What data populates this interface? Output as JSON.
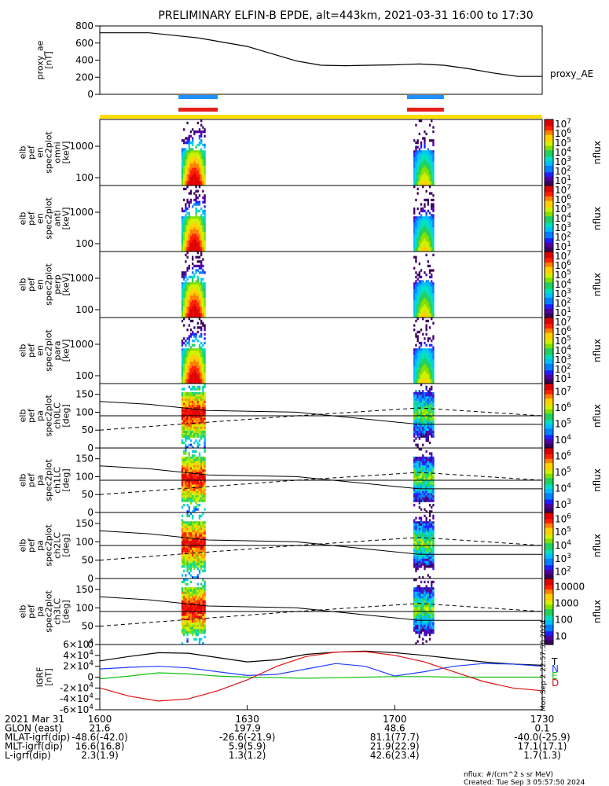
{
  "title": "PRELIMINARY ELFIN-B EPDE, alt=443km, 2021-03-31 16:00 to 17:30",
  "colors": {
    "bar_blue": "#1e90ff",
    "bar_red": "#e8201a",
    "bar_yellow": "#ffdd00",
    "grf_T": "#000000",
    "grf_N": "#1f3fff",
    "grf_E": "#10c010",
    "grf_D": "#e01010"
  },
  "footer": {
    "rows": [
      {
        "label": "2021 Mar 31",
        "values": [
          "1600",
          "1630",
          "1700",
          "1730"
        ]
      },
      {
        "label": "GLON (east)",
        "values": [
          "21.6",
          "197.9",
          "48.6",
          "0.1"
        ]
      },
      {
        "label": "MLAT-igrf(dip)",
        "values": [
          "-48.6(-42.0)",
          "-26.6(-21.9)",
          "81.1(77.7)",
          "-40.0(-25.9)"
        ]
      },
      {
        "label": "MLT-igrf(dip)",
        "values": [
          "16.6(16.8)",
          "5.9(5.9)",
          "21.9(22.9)",
          "17.1(17.1)"
        ]
      },
      {
        "label": "L-igrf(dip)",
        "values": [
          "2.3(1.9)",
          "1.3(1.2)",
          "42.6(23.4)",
          "1.7(1.3)"
        ]
      }
    ],
    "units_note": "nflux: #/(cm^2 s sr MeV)",
    "created_note": "Created: Tue Sep  3 05:57:50 2024",
    "side_stamp": "Mon Sep  2 22:57:50 2024"
  },
  "chart_data": [
    {
      "type": "line",
      "ylabel": "proxy_ae [nT]",
      "legend": "proxy_AE",
      "ylim": [
        0,
        800
      ],
      "yticks": [
        "0",
        "200",
        "400",
        "600",
        "800"
      ],
      "x_minutes": [
        0,
        10,
        20,
        30,
        40,
        45,
        50,
        55,
        60,
        65,
        70,
        75,
        80,
        85,
        90
      ],
      "values": [
        720,
        720,
        660,
        560,
        390,
        340,
        335,
        340,
        345,
        355,
        340,
        300,
        250,
        210,
        210
      ]
    },
    {
      "type": "heatmap",
      "ylabel": "elb pef en spec2plot omni [keV]",
      "yticks": [
        "100",
        "1000"
      ],
      "colorbar": {
        "label": "nflux",
        "ticks": [
          "10^1",
          "10^2",
          "10^3",
          "10^4",
          "10^5",
          "10^6",
          "10^7"
        ]
      }
    },
    {
      "type": "heatmap",
      "ylabel": "elb pef en spec2plot anti [keV]",
      "yticks": [
        "100",
        "1000"
      ],
      "colorbar": {
        "label": "nflux",
        "ticks": [
          "10^1",
          "10^2",
          "10^3",
          "10^4",
          "10^5",
          "10^6",
          "10^7"
        ]
      }
    },
    {
      "type": "heatmap",
      "ylabel": "elb pef en spec2plot perp [keV]",
      "yticks": [
        "100",
        "1000"
      ],
      "colorbar": {
        "label": "nflux",
        "ticks": [
          "10^1",
          "10^2",
          "10^3",
          "10^4",
          "10^5",
          "10^6",
          "10^7"
        ]
      }
    },
    {
      "type": "heatmap",
      "ylabel": "elb pef en spec2plot para [keV]",
      "yticks": [
        "100",
        "1000"
      ],
      "colorbar": {
        "label": "nflux",
        "ticks": [
          "10^1",
          "10^2",
          "10^3",
          "10^4",
          "10^5",
          "10^6",
          "10^7"
        ]
      }
    },
    {
      "type": "heatmap",
      "ylabel": "elb pef pa spec2plot ch0LC [deg]",
      "yticks": [
        "0",
        "50",
        "100",
        "150"
      ],
      "ylim": [
        0,
        180
      ],
      "colorbar": {
        "label": "nflux",
        "ticks": [
          "10^4",
          "10^5",
          "10^6",
          "10^7"
        ]
      }
    },
    {
      "type": "heatmap",
      "ylabel": "elb pef pa spec2plot ch1LC [deg]",
      "yticks": [
        "0",
        "50",
        "100",
        "150"
      ],
      "ylim": [
        0,
        180
      ],
      "colorbar": {
        "label": "nflux",
        "ticks": [
          "10^3",
          "10^4",
          "10^5",
          "10^6"
        ]
      }
    },
    {
      "type": "heatmap",
      "ylabel": "elb pef pa spec2plot ch2LC [deg]",
      "yticks": [
        "0",
        "50",
        "100",
        "150"
      ],
      "ylim": [
        0,
        180
      ],
      "colorbar": {
        "label": "nflux",
        "ticks": [
          "10^2",
          "10^3",
          "10^4",
          "10^5",
          "10^6"
        ]
      }
    },
    {
      "type": "heatmap",
      "ylabel": "elb pef pa spec2plot ch3LC [deg]",
      "yticks": [
        "0",
        "50",
        "100",
        "150"
      ],
      "ylim": [
        0,
        180
      ],
      "colorbar": {
        "label": "nflux",
        "ticks": [
          "10",
          "100",
          "1000",
          "10000"
        ]
      }
    },
    {
      "type": "line",
      "ylabel": "IGRF [nT]",
      "ylim": [
        -60000,
        60000
      ],
      "yticks": [
        "-6×10^4",
        "-4×10^4",
        "-2×10^4",
        "0",
        "2×10^4",
        "4×10^4",
        "6×10^4"
      ],
      "legend": [
        "T",
        "N",
        "E",
        "D"
      ],
      "x_minutes": [
        0,
        6,
        12,
        18,
        24,
        30,
        36,
        42,
        48,
        54,
        60,
        66,
        72,
        78,
        84,
        90
      ],
      "series": [
        {
          "name": "T",
          "values": [
            30000,
            38000,
            45000,
            44000,
            36000,
            28000,
            32000,
            42000,
            46000,
            48000,
            45000,
            40000,
            34000,
            28000,
            24000,
            22000
          ]
        },
        {
          "name": "N",
          "values": [
            15000,
            18000,
            20000,
            17000,
            10000,
            3000,
            5000,
            15000,
            25000,
            20000,
            2000,
            10000,
            20000,
            25000,
            24000,
            20000
          ]
        },
        {
          "name": "E",
          "values": [
            -3000,
            2000,
            8000,
            6000,
            2000,
            0,
            -1000,
            -2000,
            -1000,
            0,
            1000,
            1000,
            0,
            0,
            0,
            0
          ]
        },
        {
          "name": "D",
          "values": [
            -20000,
            -35000,
            -44000,
            -40000,
            -25000,
            -5000,
            20000,
            38000,
            46000,
            47000,
            40000,
            28000,
            10000,
            -8000,
            -20000,
            -25000
          ]
        }
      ]
    }
  ]
}
